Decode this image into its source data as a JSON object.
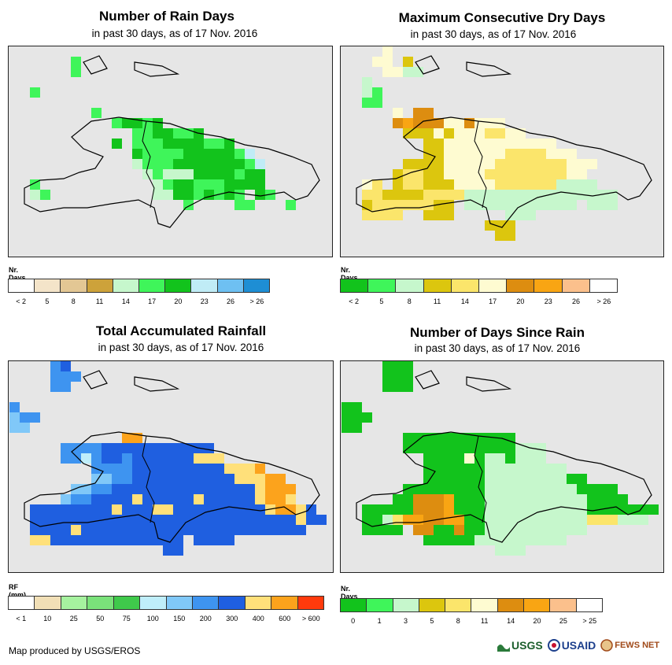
{
  "panels": [
    {
      "title": "Number of Rain Days",
      "subtitle": "in past 30 days, as of 17 Nov. 2016",
      "legend": {
        "label": "Nr. Days",
        "colors": [
          "#ffffff",
          "#f4e4c9",
          "#e3c794",
          "#cda23a",
          "#c6f7cc",
          "#3ff55a",
          "#12c31c",
          "#c0ecf6",
          "#6ec0f2",
          "#1e8ed4"
        ],
        "ticks": [
          "< 2",
          "5",
          "8",
          "11",
          "14",
          "17",
          "20",
          "23",
          "26",
          "> 26"
        ]
      }
    },
    {
      "title": "Maximum Consecutive Dry Days",
      "subtitle": "in past 30 days, as of 17 Nov. 2016",
      "legend": {
        "label": "Nr. Days",
        "colors": [
          "#12c31c",
          "#3ff55a",
          "#c6f7cc",
          "#dcc60e",
          "#fbe56b",
          "#fefbd1",
          "#dd8d10",
          "#f9a513",
          "#fbc08c",
          "#ffffff"
        ],
        "ticks": [
          "< 2",
          "5",
          "8",
          "11",
          "14",
          "17",
          "20",
          "23",
          "26",
          "> 26"
        ]
      }
    },
    {
      "title": "Total Accumulated Rainfall",
      "subtitle": "in past 30 days, as of 17 Nov. 2016",
      "legend": {
        "label": "RF (mm)",
        "colors": [
          "#ffffff",
          "#f1dfb6",
          "#a6f29f",
          "#7ae27a",
          "#3fc94b",
          "#bfeefa",
          "#80c8f8",
          "#3e94f0",
          "#1f5fe0",
          "#ffe07a",
          "#fca31c",
          "#ff3a0c"
        ],
        "ticks": [
          "< 1",
          "10",
          "25",
          "50",
          "75",
          "100",
          "150",
          "200",
          "300",
          "400",
          "600",
          "> 600"
        ]
      }
    },
    {
      "title": "Number of Days Since Rain",
      "subtitle": "in past 30 days, as of 17 Nov. 2016",
      "legend": {
        "label": "Nr. Days",
        "colors": [
          "#12c31c",
          "#3ff55a",
          "#c6f7cc",
          "#dcc60e",
          "#fbe56b",
          "#fefbd1",
          "#dd8d10",
          "#f9a513",
          "#fbc08c",
          "#ffffff"
        ],
        "ticks": [
          "0",
          "1",
          "3",
          "5",
          "8",
          "11",
          "14",
          "20",
          "25",
          "> 25"
        ]
      }
    }
  ],
  "footer": {
    "credit": "Map produced by USGS/EROS",
    "logos": [
      "USGS",
      "USAID",
      "FEWS NET"
    ]
  }
}
